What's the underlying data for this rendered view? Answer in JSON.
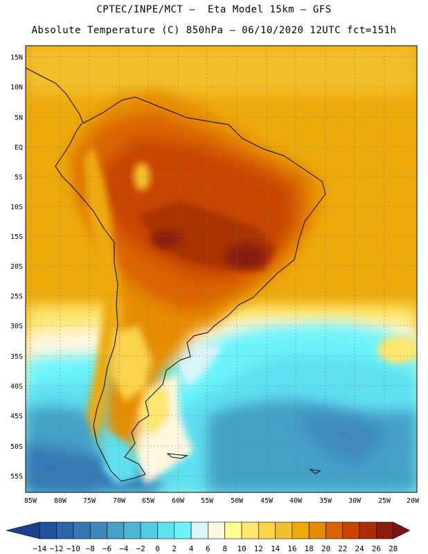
{
  "header": {
    "line1": "CPTEC/INPE/MCT –  Eta Model 15km – GFS",
    "line2": "Absolute Temperature (C) 850hPa – 06/10/2020 12UTC fct=151h"
  },
  "axes": {
    "lat_labels": [
      "15N",
      "10N",
      "5N",
      "EQ",
      "5S",
      "10S",
      "15S",
      "20S",
      "25S",
      "30S",
      "35S",
      "40S",
      "45S",
      "50S",
      "55S"
    ],
    "lon_labels": [
      "85W",
      "80W",
      "75W",
      "70W",
      "65W",
      "60W",
      "55W",
      "50W",
      "45W",
      "40W",
      "35W",
      "30W",
      "25W",
      "20W"
    ]
  },
  "colorbar": {
    "labels": [
      "-14",
      "-12",
      "-10",
      "-8",
      "-6",
      "-4",
      "-2",
      "0",
      "2",
      "4",
      "6",
      "8",
      "10",
      "12",
      "14",
      "16",
      "18",
      "20",
      "22",
      "24",
      "26",
      "28"
    ],
    "colors": [
      "#1d3f8c",
      "#24529c",
      "#2c66ab",
      "#3478b5",
      "#3c8abd",
      "#44a0c8",
      "#4cb5d6",
      "#54cbe3",
      "#5fe0ef",
      "#6cf4fb",
      "#d8f5fa",
      "#fff7df",
      "#fffc8f",
      "#fde66e",
      "#f9d349",
      "#f4bf2c",
      "#edaa0b",
      "#e68b00",
      "#da6300",
      "#c94500",
      "#a83000",
      "#8a1e0c",
      "#7a1414"
    ]
  }
}
